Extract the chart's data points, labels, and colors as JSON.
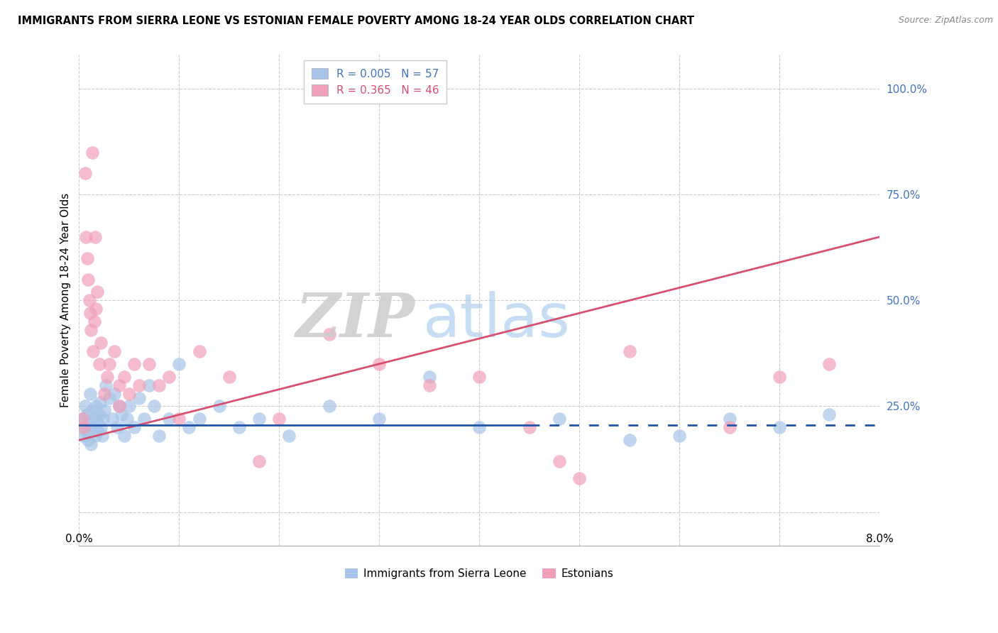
{
  "title": "IMMIGRANTS FROM SIERRA LEONE VS ESTONIAN FEMALE POVERTY AMONG 18-24 YEAR OLDS CORRELATION CHART",
  "source": "Source: ZipAtlas.com",
  "ylabel": "Female Poverty Among 18-24 Year Olds",
  "xlim": [
    0.0,
    8.0
  ],
  "ylim": [
    -8,
    108
  ],
  "ytick_positions": [
    0,
    25,
    50,
    75,
    100
  ],
  "ytick_labels": [
    "",
    "25.0%",
    "50.0%",
    "75.0%",
    "100.0%"
  ],
  "blue_R": 0.005,
  "blue_N": 57,
  "pink_R": 0.365,
  "pink_N": 46,
  "blue_color": "#a8c4e8",
  "pink_color": "#f0a0b8",
  "blue_line_color": "#2255aa",
  "pink_line_color": "#d85070",
  "legend_label_blue": "Immigrants from Sierra Leone",
  "legend_label_pink": "Estonians",
  "watermark_zip": "ZIP",
  "watermark_atlas": "atlas",
  "blue_trend_y0": 20.5,
  "blue_trend_y1": 20.5,
  "blue_solid_end_x": 4.5,
  "pink_trend_y0": 17.0,
  "pink_trend_y1": 65.0,
  "blue_x": [
    0.03,
    0.04,
    0.05,
    0.06,
    0.07,
    0.08,
    0.09,
    0.1,
    0.11,
    0.12,
    0.13,
    0.14,
    0.15,
    0.16,
    0.17,
    0.18,
    0.19,
    0.2,
    0.21,
    0.22,
    0.23,
    0.24,
    0.25,
    0.27,
    0.3,
    0.33,
    0.35,
    0.38,
    0.4,
    0.42,
    0.45,
    0.48,
    0.5,
    0.55,
    0.6,
    0.65,
    0.7,
    0.75,
    0.8,
    0.9,
    1.0,
    1.1,
    1.2,
    1.4,
    1.6,
    1.8,
    2.1,
    2.5,
    3.0,
    3.5,
    4.0,
    4.8,
    5.5,
    6.0,
    6.5,
    7.0,
    7.5
  ],
  "blue_y": [
    22,
    18,
    20,
    25,
    19,
    23,
    17,
    21,
    28,
    16,
    24,
    20,
    22,
    18,
    25,
    21,
    19,
    23,
    26,
    20,
    18,
    22,
    24,
    30,
    27,
    22,
    28,
    20,
    25,
    23,
    18,
    22,
    25,
    20,
    27,
    22,
    30,
    25,
    18,
    22,
    35,
    20,
    22,
    25,
    20,
    22,
    18,
    25,
    22,
    32,
    20,
    22,
    17,
    18,
    22,
    20,
    23
  ],
  "pink_x": [
    0.03,
    0.05,
    0.07,
    0.08,
    0.09,
    0.1,
    0.11,
    0.12,
    0.14,
    0.15,
    0.17,
    0.18,
    0.2,
    0.22,
    0.25,
    0.28,
    0.3,
    0.35,
    0.4,
    0.45,
    0.5,
    0.55,
    0.6,
    0.7,
    0.8,
    0.9,
    1.0,
    1.2,
    1.5,
    1.8,
    2.0,
    2.5,
    3.0,
    3.5,
    4.0,
    4.5,
    5.0,
    5.5,
    6.5,
    7.0,
    7.5,
    0.4,
    0.13,
    0.16,
    4.8,
    0.06
  ],
  "pink_y": [
    22,
    20,
    65,
    60,
    55,
    50,
    47,
    43,
    38,
    45,
    48,
    52,
    35,
    40,
    28,
    32,
    35,
    38,
    30,
    32,
    28,
    35,
    30,
    35,
    30,
    32,
    22,
    38,
    32,
    12,
    22,
    42,
    35,
    30,
    32,
    20,
    8,
    38,
    20,
    32,
    35,
    25,
    85,
    65,
    12,
    80
  ]
}
